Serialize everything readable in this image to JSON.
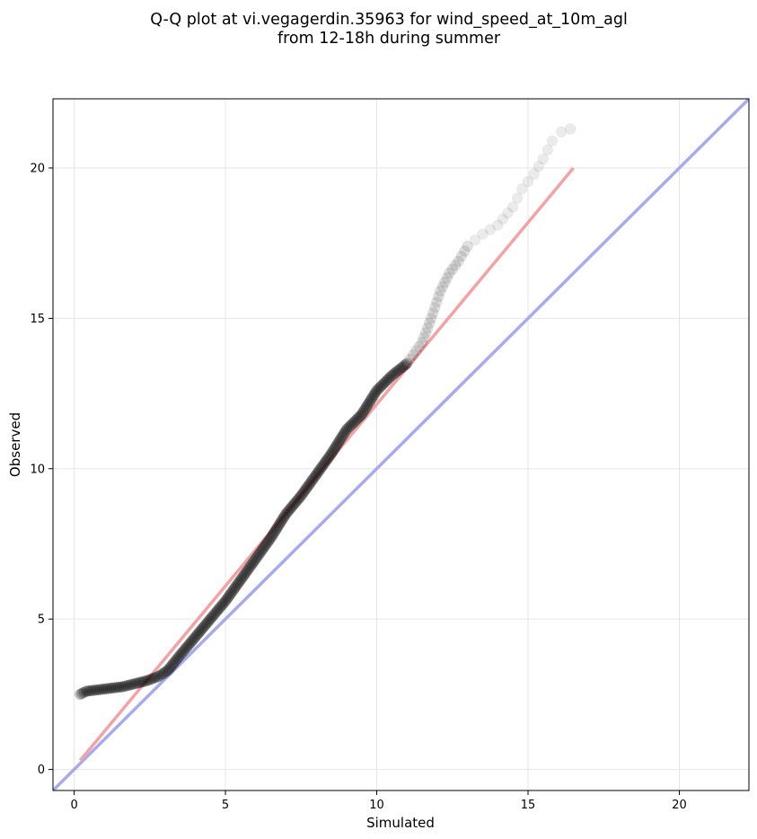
{
  "chart_data": {
    "type": "scatter",
    "title": [
      "Q-Q plot at vi.vegagerdin.35963 for wind_speed_at_10m_agl",
      "from 12-18h during summer"
    ],
    "xlabel": "Simulated",
    "ylabel": "Observed",
    "xlim": [
      -0.7,
      22.3
    ],
    "ylim": [
      -0.7,
      22.3
    ],
    "xticks": [
      0,
      5,
      10,
      15,
      20
    ],
    "yticks": [
      0,
      5,
      10,
      15,
      20
    ],
    "grid": true,
    "colors": {
      "points": "#000000",
      "fit_line": "#f4a3a3",
      "identity_line": "#a8aaf0",
      "grid": "#e6e6e6"
    },
    "fit_line": {
      "x": [
        0.2,
        16.5
      ],
      "y": [
        0.3,
        20.0
      ]
    },
    "identity_line": {
      "x": [
        -0.7,
        22.3
      ],
      "y": [
        -0.7,
        22.3
      ]
    },
    "quantile_curve": [
      [
        0.2,
        2.5
      ],
      [
        0.4,
        2.6
      ],
      [
        0.8,
        2.65
      ],
      [
        1.2,
        2.7
      ],
      [
        1.6,
        2.75
      ],
      [
        2.0,
        2.85
      ],
      [
        2.4,
        2.95
      ],
      [
        2.8,
        3.1
      ],
      [
        3.1,
        3.3
      ],
      [
        3.5,
        3.8
      ],
      [
        4.0,
        4.4
      ],
      [
        4.5,
        5.0
      ],
      [
        5.0,
        5.6
      ],
      [
        5.5,
        6.3
      ],
      [
        6.0,
        7.0
      ],
      [
        6.5,
        7.7
      ],
      [
        7.0,
        8.5
      ],
      [
        7.5,
        9.1
      ],
      [
        8.0,
        9.8
      ],
      [
        8.5,
        10.5
      ],
      [
        9.0,
        11.3
      ],
      [
        9.5,
        11.8
      ],
      [
        10.0,
        12.6
      ],
      [
        10.5,
        13.1
      ],
      [
        11.0,
        13.5
      ],
      [
        11.5,
        14.2
      ],
      [
        11.8,
        15.0
      ],
      [
        12.1,
        15.9
      ],
      [
        12.4,
        16.5
      ],
      [
        12.7,
        16.9
      ],
      [
        13.0,
        17.4
      ],
      [
        13.5,
        17.8
      ],
      [
        14.0,
        18.1
      ],
      [
        14.5,
        18.7
      ],
      [
        14.8,
        19.3
      ],
      [
        15.2,
        19.8
      ],
      [
        15.5,
        20.3
      ],
      [
        15.8,
        20.9
      ],
      [
        16.1,
        21.2
      ],
      [
        16.4,
        21.3
      ]
    ]
  }
}
